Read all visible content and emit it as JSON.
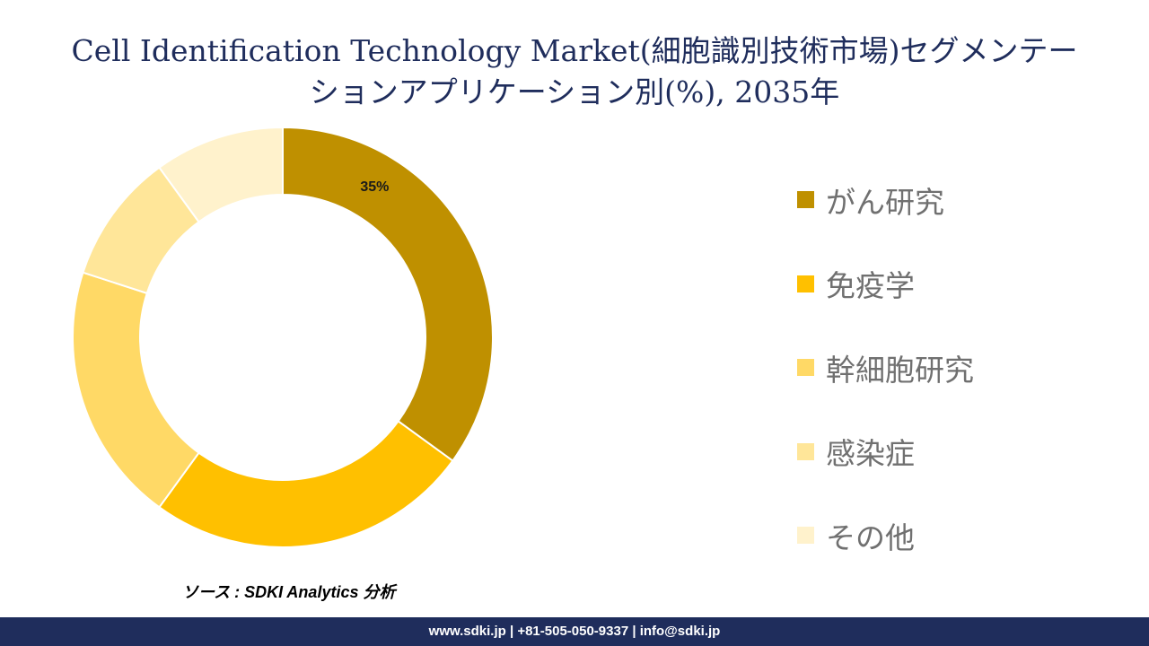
{
  "title": {
    "line1": "Cell Identification Technology Market(細胞識別技術市場)セグメンテー",
    "line2": "ションアプリケーション別(%), 2035年"
  },
  "chart_data": {
    "type": "pie",
    "donut": true,
    "categories": [
      "がん研究",
      "免疫学",
      "幹細胞研究",
      "感染症",
      "その他"
    ],
    "values": [
      35,
      25,
      20,
      10,
      10
    ],
    "colors": [
      "#bf9000",
      "#ffc000",
      "#ffd966",
      "#ffe699",
      "#fff2cc"
    ],
    "data_labels": [
      "35%",
      "",
      "",
      "",
      ""
    ],
    "legend_position": "right"
  },
  "source": "ソース : SDKI Analytics 分析",
  "footer": "www.sdki.jp | +81-505-050-9337 | info@sdki.jp"
}
